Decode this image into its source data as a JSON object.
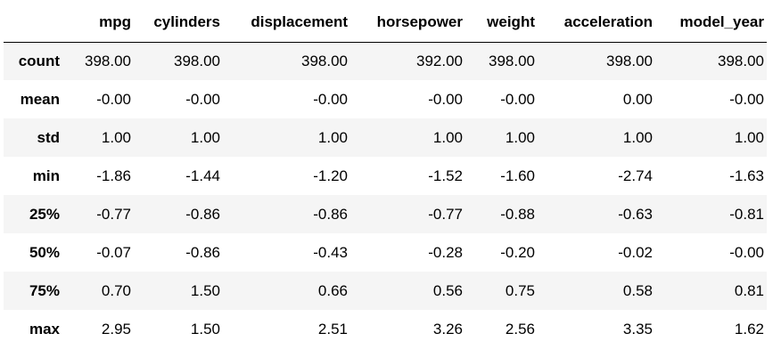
{
  "table": {
    "columns": [
      "mpg",
      "cylinders",
      "displacement",
      "horsepower",
      "weight",
      "acceleration",
      "model_year"
    ],
    "rows": [
      {
        "label": "count",
        "values": [
          "398.00",
          "398.00",
          "398.00",
          "392.00",
          "398.00",
          "398.00",
          "398.00"
        ]
      },
      {
        "label": "mean",
        "values": [
          "-0.00",
          "-0.00",
          "-0.00",
          "-0.00",
          "-0.00",
          "0.00",
          "-0.00"
        ]
      },
      {
        "label": "std",
        "values": [
          "1.00",
          "1.00",
          "1.00",
          "1.00",
          "1.00",
          "1.00",
          "1.00"
        ]
      },
      {
        "label": "min",
        "values": [
          "-1.86",
          "-1.44",
          "-1.20",
          "-1.52",
          "-1.60",
          "-2.74",
          "-1.63"
        ]
      },
      {
        "label": "25%",
        "values": [
          "-0.77",
          "-0.86",
          "-0.86",
          "-0.77",
          "-0.88",
          "-0.63",
          "-0.81"
        ]
      },
      {
        "label": "50%",
        "values": [
          "-0.07",
          "-0.86",
          "-0.43",
          "-0.28",
          "-0.20",
          "-0.02",
          "-0.00"
        ]
      },
      {
        "label": "75%",
        "values": [
          "0.70",
          "1.50",
          "0.66",
          "0.56",
          "0.75",
          "0.58",
          "0.81"
        ]
      },
      {
        "label": "max",
        "values": [
          "2.95",
          "1.50",
          "2.51",
          "3.26",
          "2.56",
          "3.35",
          "1.62"
        ]
      }
    ]
  }
}
